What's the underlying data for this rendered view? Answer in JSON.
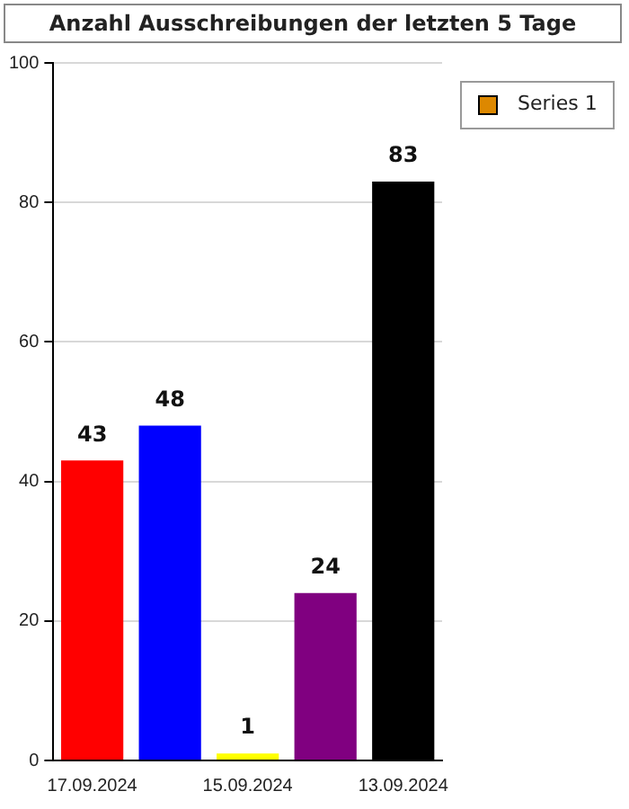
{
  "chart_data": {
    "type": "bar",
    "title": "Anzahl Ausschreibungen der letzten 5 Tage",
    "categories": [
      "17.09.2024",
      null,
      "15.09.2024",
      null,
      "13.09.2024"
    ],
    "series": [
      {
        "name": "Series 1",
        "color": "#dd8800",
        "colors": [
          "#ff0000",
          "#0000ff",
          "#ffff00",
          "#800080",
          "#000000"
        ],
        "values": [
          43,
          48,
          1,
          24,
          83
        ]
      }
    ],
    "ylim": [
      0,
      100
    ],
    "yticks": [
      0,
      20,
      40,
      60,
      80,
      100
    ],
    "grid": "y",
    "legend": "top right",
    "data_labels": true
  }
}
